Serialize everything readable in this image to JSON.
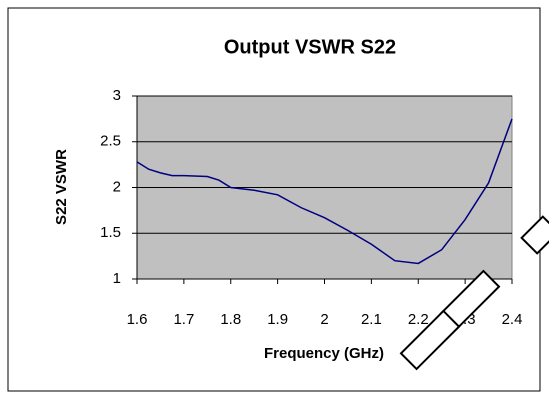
{
  "chart_data": {
    "type": "line",
    "title": "Output VSWR S22",
    "xlabel": "Frequency (GHz)",
    "ylabel": "S22 VSWR",
    "x": [
      1.6,
      1.625,
      1.65,
      1.675,
      1.7,
      1.75,
      1.775,
      1.8,
      1.85,
      1.9,
      1.95,
      2.0,
      2.05,
      2.1,
      2.15,
      2.2,
      2.25,
      2.3,
      2.35,
      2.4
    ],
    "series": [
      {
        "name": "S22",
        "color": "#000080",
        "values": [
          2.28,
          2.2,
          2.16,
          2.13,
          2.13,
          2.12,
          2.08,
          2.0,
          1.97,
          1.92,
          1.78,
          1.67,
          1.53,
          1.38,
          1.2,
          1.17,
          1.32,
          1.65,
          2.05,
          2.75
        ]
      }
    ],
    "xlim": [
      1.6,
      2.4
    ],
    "xticks": [
      1.6,
      1.7,
      1.8,
      1.9,
      2,
      2.1,
      2.2,
      2.3,
      2.4
    ],
    "ylim": [
      1,
      3
    ],
    "yticks": [
      1,
      1.5,
      2,
      2.5,
      3
    ],
    "grid": true,
    "plot_background": "#c0c0c0"
  }
}
